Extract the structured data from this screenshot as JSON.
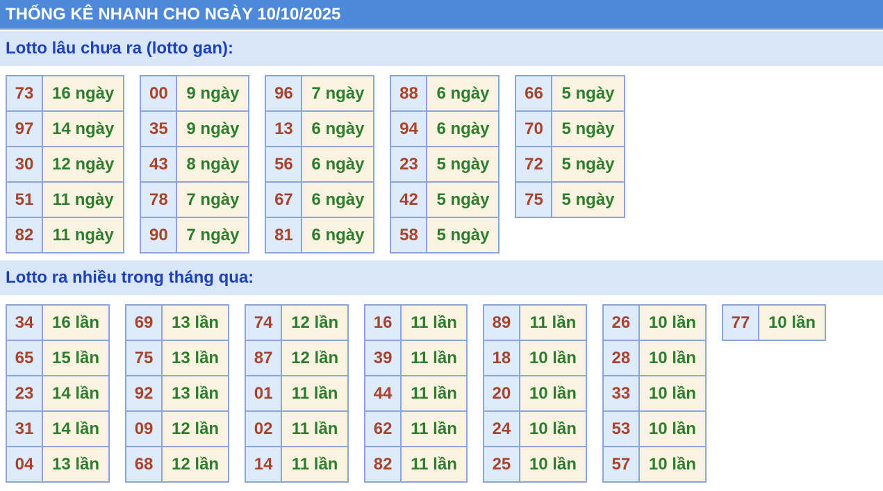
{
  "title": "THỐNG KÊ NHANH CHO NGÀY 10/10/2025",
  "colors": {
    "title_bg": "#4e88d9",
    "band_bg": "#d9e6f7",
    "heading_text": "#1d40bb",
    "number_text": "#a8432c",
    "count_text": "#2e7d2e",
    "number_bg": "#ddebfb",
    "count_bg": "#faf3e1",
    "cell_border": "#8aa4dd"
  },
  "sections": [
    {
      "heading": "Lotto lâu chưa ra (lotto gan):",
      "unit": "ngày",
      "tables": [
        {
          "rows": [
            {
              "number": "73",
              "count": "16 ngày"
            },
            {
              "number": "97",
              "count": "14 ngày"
            },
            {
              "number": "30",
              "count": "12 ngày"
            },
            {
              "number": "51",
              "count": "11 ngày"
            },
            {
              "number": "82",
              "count": "11 ngày"
            }
          ]
        },
        {
          "rows": [
            {
              "number": "00",
              "count": "9 ngày"
            },
            {
              "number": "35",
              "count": "9 ngày"
            },
            {
              "number": "43",
              "count": "8 ngày"
            },
            {
              "number": "78",
              "count": "7 ngày"
            },
            {
              "number": "90",
              "count": "7 ngày"
            }
          ]
        },
        {
          "rows": [
            {
              "number": "96",
              "count": "7 ngày"
            },
            {
              "number": "13",
              "count": "6 ngày"
            },
            {
              "number": "56",
              "count": "6 ngày"
            },
            {
              "number": "67",
              "count": "6 ngày"
            },
            {
              "number": "81",
              "count": "6 ngày"
            }
          ]
        },
        {
          "rows": [
            {
              "number": "88",
              "count": "6 ngày"
            },
            {
              "number": "94",
              "count": "6 ngày"
            },
            {
              "number": "23",
              "count": "5 ngày"
            },
            {
              "number": "42",
              "count": "5 ngày"
            },
            {
              "number": "58",
              "count": "5 ngày"
            }
          ]
        },
        {
          "rows": [
            {
              "number": "66",
              "count": "5 ngày"
            },
            {
              "number": "70",
              "count": "5 ngày"
            },
            {
              "number": "72",
              "count": "5 ngày"
            },
            {
              "number": "75",
              "count": "5 ngày"
            }
          ]
        }
      ]
    },
    {
      "heading": "Lotto ra nhiều trong tháng qua:",
      "unit": "lần",
      "tables": [
        {
          "rows": [
            {
              "number": "34",
              "count": "16 lần"
            },
            {
              "number": "65",
              "count": "15 lần"
            },
            {
              "number": "23",
              "count": "14 lần"
            },
            {
              "number": "31",
              "count": "14 lần"
            },
            {
              "number": "04",
              "count": "13 lần"
            }
          ]
        },
        {
          "rows": [
            {
              "number": "69",
              "count": "13 lần"
            },
            {
              "number": "75",
              "count": "13 lần"
            },
            {
              "number": "92",
              "count": "13 lần"
            },
            {
              "number": "09",
              "count": "12 lần"
            },
            {
              "number": "68",
              "count": "12 lần"
            }
          ]
        },
        {
          "rows": [
            {
              "number": "74",
              "count": "12 lần"
            },
            {
              "number": "87",
              "count": "12 lần"
            },
            {
              "number": "01",
              "count": "11 lần"
            },
            {
              "number": "02",
              "count": "11 lần"
            },
            {
              "number": "14",
              "count": "11 lần"
            }
          ]
        },
        {
          "rows": [
            {
              "number": "16",
              "count": "11 lần"
            },
            {
              "number": "39",
              "count": "11 lần"
            },
            {
              "number": "44",
              "count": "11 lần"
            },
            {
              "number": "62",
              "count": "11 lần"
            },
            {
              "number": "82",
              "count": "11 lần"
            }
          ]
        },
        {
          "rows": [
            {
              "number": "89",
              "count": "11 lần"
            },
            {
              "number": "18",
              "count": "10 lần"
            },
            {
              "number": "20",
              "count": "10 lần"
            },
            {
              "number": "24",
              "count": "10 lần"
            },
            {
              "number": "25",
              "count": "10 lần"
            }
          ]
        },
        {
          "rows": [
            {
              "number": "26",
              "count": "10 lần"
            },
            {
              "number": "28",
              "count": "10 lần"
            },
            {
              "number": "33",
              "count": "10 lần"
            },
            {
              "number": "53",
              "count": "10 lần"
            },
            {
              "number": "57",
              "count": "10 lần"
            }
          ]
        },
        {
          "rows": [
            {
              "number": "77",
              "count": "10 lần"
            }
          ]
        }
      ]
    }
  ]
}
